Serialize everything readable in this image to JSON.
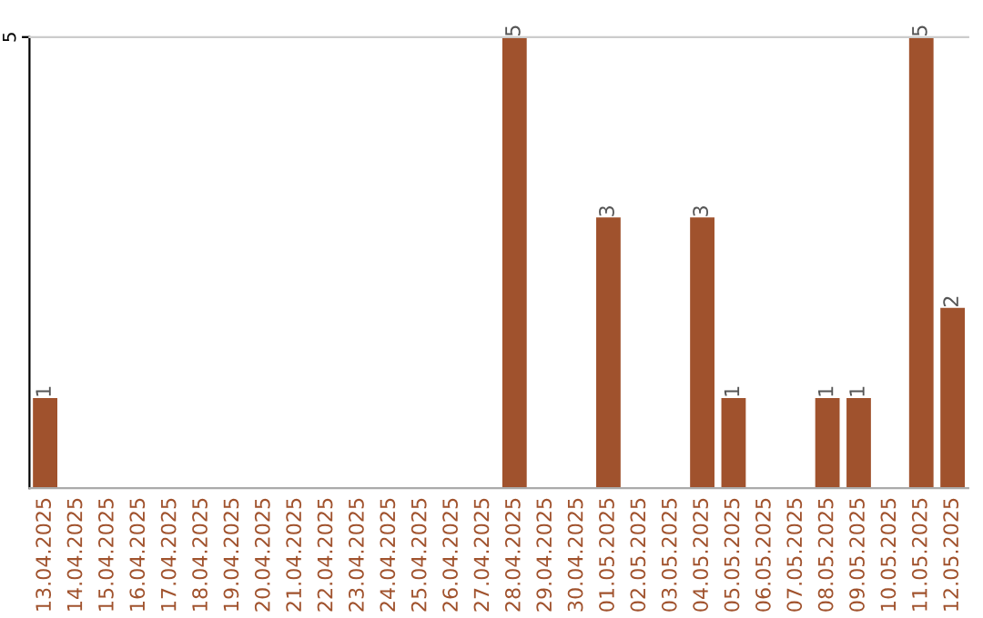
{
  "chart_data": {
    "type": "bar",
    "categories": [
      "13.04.2025",
      "14.04.2025",
      "15.04.2025",
      "16.04.2025",
      "17.04.2025",
      "18.04.2025",
      "19.04.2025",
      "20.04.2025",
      "21.04.2025",
      "22.04.2025",
      "23.04.2025",
      "24.04.2025",
      "25.04.2025",
      "26.04.2025",
      "27.04.2025",
      "28.04.2025",
      "29.04.2025",
      "30.04.2025",
      "01.05.2025",
      "02.05.2025",
      "03.05.2025",
      "04.05.2025",
      "05.05.2025",
      "06.05.2025",
      "07.05.2025",
      "08.05.2025",
      "09.05.2025",
      "10.05.2025",
      "11.05.2025",
      "12.05.2025"
    ],
    "values": [
      1,
      0,
      0,
      0,
      0,
      0,
      0,
      0,
      0,
      0,
      0,
      0,
      0,
      0,
      0,
      5,
      0,
      0,
      3,
      0,
      0,
      3,
      1,
      0,
      0,
      1,
      1,
      0,
      5,
      2
    ],
    "value_labels": [
      "1",
      null,
      null,
      null,
      null,
      null,
      null,
      null,
      null,
      null,
      null,
      null,
      null,
      null,
      null,
      "5",
      null,
      null,
      "3",
      null,
      null,
      "3",
      "1",
      null,
      null,
      "1",
      "1",
      null,
      "5",
      "2"
    ],
    "color": "#a0522d",
    "ylim": [
      0,
      5
    ],
    "yticks": [
      5
    ]
  }
}
